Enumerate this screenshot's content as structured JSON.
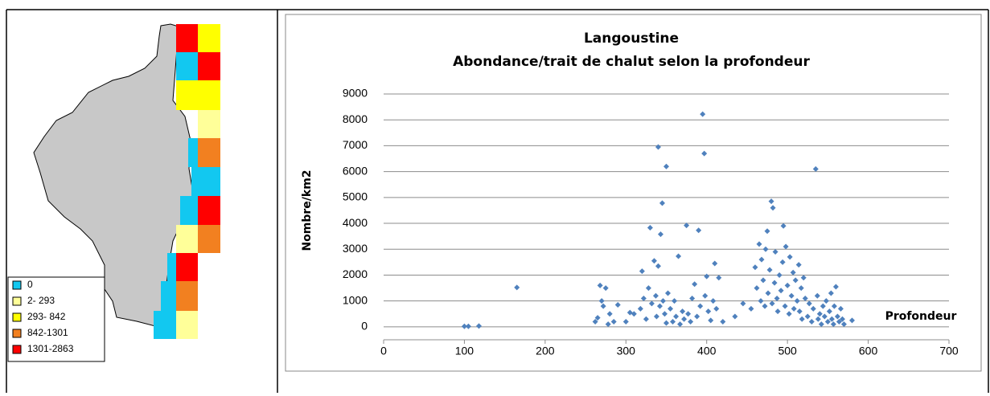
{
  "map_legend": {
    "items": [
      {
        "label": "0",
        "color": "#12c8f0"
      },
      {
        "label": "2- 293",
        "color": "#ffff99"
      },
      {
        "label": "293- 842",
        "color": "#ffff00"
      },
      {
        "label": "842-1301",
        "color": "#f28020"
      },
      {
        "label": "1301-2863",
        "color": "#ff0000"
      }
    ]
  },
  "chart_data": {
    "type": "scatter",
    "title": "Langoustine",
    "subtitle": "Abondance/trait de chalut selon la profondeur",
    "x_label": "Profondeur",
    "y_label": "Nombre/km2",
    "color": "#4f81bd",
    "xlim": [
      0,
      700
    ],
    "xticks": [
      0,
      100,
      200,
      300,
      400,
      500,
      600,
      700
    ],
    "ylim": [
      -500,
      9000
    ],
    "yticks": [
      0,
      1000,
      2000,
      3000,
      4000,
      5000,
      6000,
      7000,
      8000,
      9000
    ],
    "grid": true,
    "x": [
      100,
      105,
      118,
      165,
      262,
      265,
      268,
      270,
      272,
      275,
      278,
      280,
      285,
      290,
      300,
      305,
      310,
      318,
      320,
      322,
      325,
      328,
      330,
      332,
      335,
      337,
      338,
      340,
      340,
      342,
      343,
      345,
      346,
      348,
      350,
      350,
      352,
      355,
      358,
      360,
      362,
      365,
      367,
      370,
      372,
      375,
      377,
      380,
      382,
      385,
      388,
      390,
      392,
      395,
      397,
      398,
      400,
      402,
      405,
      408,
      410,
      412,
      415,
      420,
      435,
      445,
      455,
      460,
      462,
      465,
      467,
      468,
      470,
      472,
      473,
      475,
      476,
      478,
      480,
      481,
      482,
      484,
      485,
      487,
      488,
      490,
      492,
      494,
      495,
      497,
      498,
      500,
      502,
      503,
      505,
      507,
      508,
      510,
      512,
      514,
      515,
      517,
      518,
      520,
      522,
      525,
      527,
      530,
      532,
      535,
      537,
      538,
      540,
      542,
      544,
      546,
      548,
      550,
      552,
      554,
      555,
      557,
      558,
      560,
      562,
      564,
      566,
      568,
      570,
      580
    ],
    "values": [
      20,
      20,
      30,
      1520,
      200,
      350,
      1600,
      1000,
      800,
      1500,
      100,
      500,
      200,
      850,
      200,
      550,
      500,
      700,
      2150,
      1100,
      300,
      1500,
      3830,
      900,
      2550,
      1200,
      400,
      6950,
      2350,
      800,
      3580,
      4780,
      1000,
      500,
      6200,
      150,
      1300,
      700,
      200,
      1000,
      400,
      2730,
      100,
      600,
      300,
      3920,
      500,
      200,
      1100,
      1650,
      400,
      3730,
      800,
      8220,
      6700,
      1200,
      1950,
      600,
      250,
      1000,
      2450,
      700,
      1900,
      200,
      400,
      900,
      700,
      2300,
      1500,
      3200,
      1000,
      2600,
      1800,
      800,
      3000,
      3700,
      1300,
      2200,
      4850,
      900,
      4600,
      1700,
      2900,
      1100,
      600,
      2000,
      1400,
      2500,
      3900,
      800,
      3100,
      1600,
      500,
      2700,
      1200,
      2100,
      700,
      1800,
      1000,
      2400,
      600,
      1500,
      300,
      1900,
      1100,
      400,
      900,
      200,
      700,
      6100,
      1200,
      300,
      500,
      100,
      800,
      400,
      1000,
      200,
      600,
      1300,
      300,
      100,
      800,
      1550,
      400,
      200,
      700,
      300,
      100,
      250
    ]
  }
}
